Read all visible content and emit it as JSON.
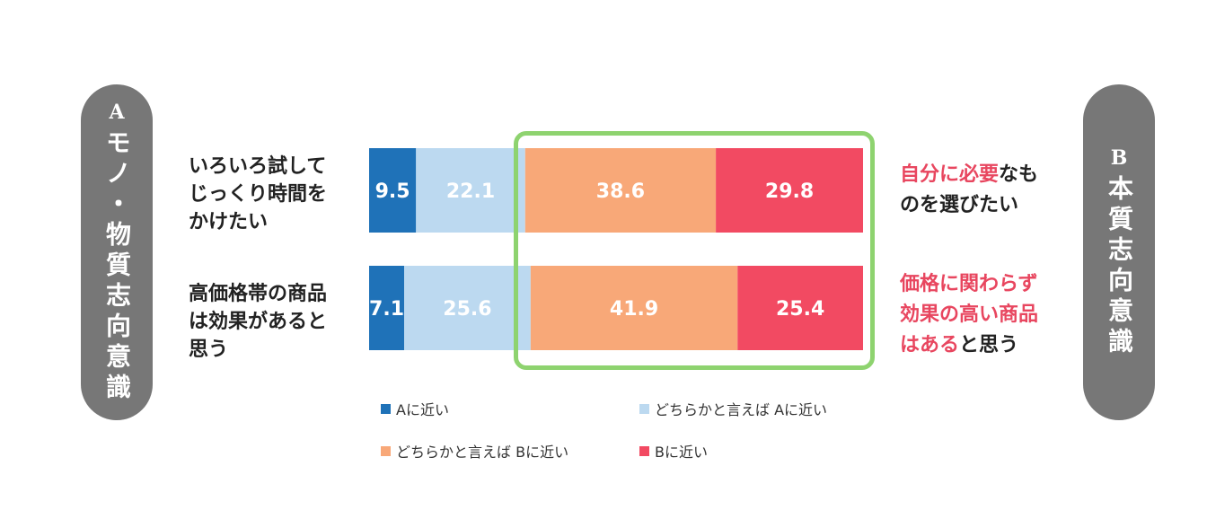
{
  "pill_a": {
    "letter": "A",
    "text": "モノ・物質志向意識"
  },
  "pill_b": {
    "letter": "B",
    "text": "本質志向意識"
  },
  "rows": [
    {
      "left_label": [
        "いろいろ試して",
        "じっくり時間を",
        "かけたい"
      ],
      "right_label": [
        [
          {
            "text": "自分に必要",
            "hl": true
          },
          {
            "text": "なも",
            "hl": false
          }
        ],
        [
          {
            "text": "のを選びたい",
            "hl": false
          }
        ]
      ]
    },
    {
      "left_label": [
        "高価格帯の商品",
        "は効果があると",
        "思う"
      ],
      "right_label": [
        [
          {
            "text": "価格に関わらず",
            "hl": true
          }
        ],
        [
          {
            "text": "効果の高い商品",
            "hl": true
          }
        ],
        [
          {
            "text": "はある",
            "hl": true
          },
          {
            "text": "と思う",
            "hl": false
          }
        ]
      ]
    }
  ],
  "chart_data": {
    "type": "bar",
    "orientation": "horizontal",
    "stacked": true,
    "categories": [
      "いろいろ試してじっくり時間をかけたい",
      "高価格帯の商品は効果があると思う"
    ],
    "series": [
      {
        "name": "Aに近い",
        "color": "#1f72b8",
        "values": [
          9.5,
          7.1
        ]
      },
      {
        "name": "どちらかと言えば Aに近い",
        "color": "#bcd9f0",
        "values": [
          22.1,
          25.6
        ]
      },
      {
        "name": "どちらかと言えば Bに近い",
        "color": "#f8a878",
        "values": [
          38.6,
          41.9
        ]
      },
      {
        "name": "Bに近い",
        "color": "#f24a62",
        "values": [
          29.8,
          25.4
        ]
      }
    ],
    "xlim": [
      0,
      100
    ],
    "grid": false,
    "legend_position": "bottom",
    "highlight": "どちらかと言えば Bに近い + Bに近い"
  }
}
